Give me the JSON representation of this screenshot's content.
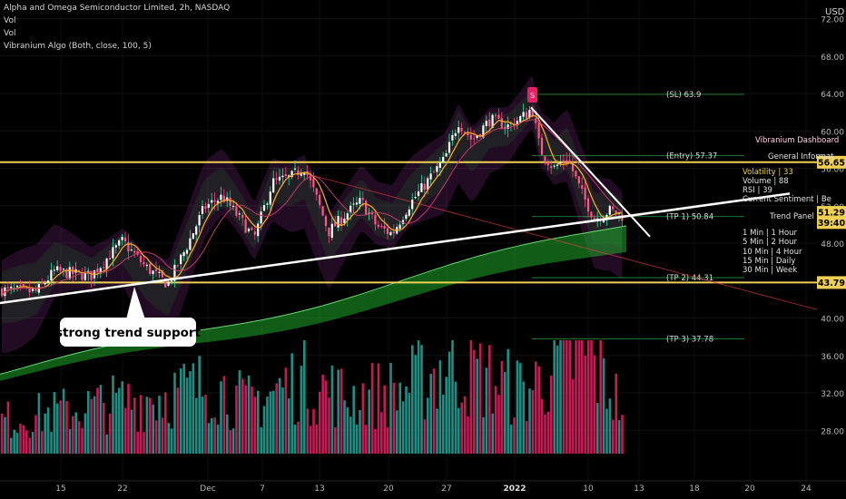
{
  "header": {
    "title": "Alpha and Omega Semiconductor Limited, 2h, NASDAQ",
    "vol1": "Vol",
    "vol2": "Vol",
    "algo": "Vibranium Algo (Both, close, 100, 5)"
  },
  "currency": "USD",
  "annotation": "strong trend support",
  "colors": {
    "background": "#000000",
    "up": "#26a69a",
    "down": "#e91e63",
    "ma_orange": "#f5a623",
    "support_line": "#ffffff",
    "level_line": "#f0d054",
    "cloud_green": "#1faa2c",
    "band_purple": "#7b2a7e"
  },
  "levels": [
    {
      "label": "(SL) 63.9",
      "value": 63.9
    },
    {
      "label": "(Entry) 57.37",
      "value": 57.37
    },
    {
      "label": "(TP 1) 50.84",
      "value": 50.84
    },
    {
      "label": "(TP 2) 44.31",
      "value": 44.31
    },
    {
      "label": "(TP 3) 37.78",
      "value": 37.78
    }
  ],
  "price_badges": [
    {
      "text": "56.65",
      "value": 56.65,
      "color": "#f0d054",
      "text_color": "#000000"
    },
    {
      "text": "51.29",
      "value": 51.29,
      "color": "#f0d054",
      "text_color": "#000000"
    },
    {
      "text": "39:40",
      "value": 50.2,
      "color": "#f0d054",
      "text_color": "#000000"
    },
    {
      "text": "43.79",
      "value": 43.79,
      "color": "#f0d054",
      "text_color": "#000000"
    }
  ],
  "dashboard": {
    "title": "Vibranium Dashboard",
    "general": "General Informat",
    "rows": [
      "Volatility | 33",
      "Volume | 88",
      "RSI | 39",
      "Current Sentiment | Be"
    ],
    "trend_panel": "Trend Panel",
    "trend_rows": [
      "1 Min | 1 Hour",
      "5 Min | 2 Hour",
      "10 Min | 4 Hour",
      "15 Min | Daily",
      "30 Min | Week"
    ]
  },
  "chart_data": {
    "type": "candlestick",
    "symbol": "AOSL",
    "timeframe": "2h",
    "y_ticks": [
      72,
      68,
      64,
      60,
      56,
      52,
      48,
      40,
      36,
      32,
      28
    ],
    "x_ticks": [
      "15",
      "22",
      "Dec",
      "7",
      "13",
      "20",
      "27",
      "2022",
      "10",
      "13",
      "18",
      "20",
      "24"
    ],
    "price_path": [
      [
        0,
        43.0
      ],
      [
        40,
        42.8
      ],
      [
        60,
        45.0
      ],
      [
        100,
        44.5
      ],
      [
        135,
        48.2
      ],
      [
        160,
        45.5
      ],
      [
        185,
        43.6
      ],
      [
        205,
        47.5
      ],
      [
        225,
        51.8
      ],
      [
        245,
        53.0
      ],
      [
        265,
        50.5
      ],
      [
        280,
        48.5
      ],
      [
        300,
        54.5
      ],
      [
        320,
        55.0
      ],
      [
        335,
        56.2
      ],
      [
        350,
        52.5
      ],
      [
        362,
        49.2
      ],
      [
        380,
        51.0
      ],
      [
        398,
        52.5
      ],
      [
        415,
        49.8
      ],
      [
        432,
        49.0
      ],
      [
        450,
        52.0
      ],
      [
        470,
        54.5
      ],
      [
        490,
        57.0
      ],
      [
        505,
        61.0
      ],
      [
        520,
        59.0
      ],
      [
        540,
        61.2
      ],
      [
        560,
        60.5
      ],
      [
        580,
        61.8
      ],
      [
        586,
        62.5
      ],
      [
        595,
        58.0
      ],
      [
        610,
        56.0
      ],
      [
        625,
        57.2
      ],
      [
        640,
        53.5
      ],
      [
        655,
        50.6
      ],
      [
        672,
        51.5
      ],
      [
        686,
        50.9
      ]
    ],
    "volume_path": [
      [
        0,
        20
      ],
      [
        60,
        25
      ],
      [
        140,
        32
      ],
      [
        220,
        40
      ],
      [
        232,
        45
      ],
      [
        270,
        30
      ],
      [
        330,
        45
      ],
      [
        380,
        35
      ],
      [
        440,
        38
      ],
      [
        495,
        55
      ],
      [
        520,
        50
      ],
      [
        555,
        42
      ],
      [
        580,
        38
      ],
      [
        612,
        55
      ],
      [
        648,
        60
      ],
      [
        686,
        28
      ]
    ],
    "support_line": {
      "from": [
        0,
        41.6
      ],
      "to": [
        870,
        53.3
      ]
    },
    "resistance_line": {
      "from": [
        585,
        62.5
      ],
      "to": [
        716,
        48.7
      ]
    }
  }
}
